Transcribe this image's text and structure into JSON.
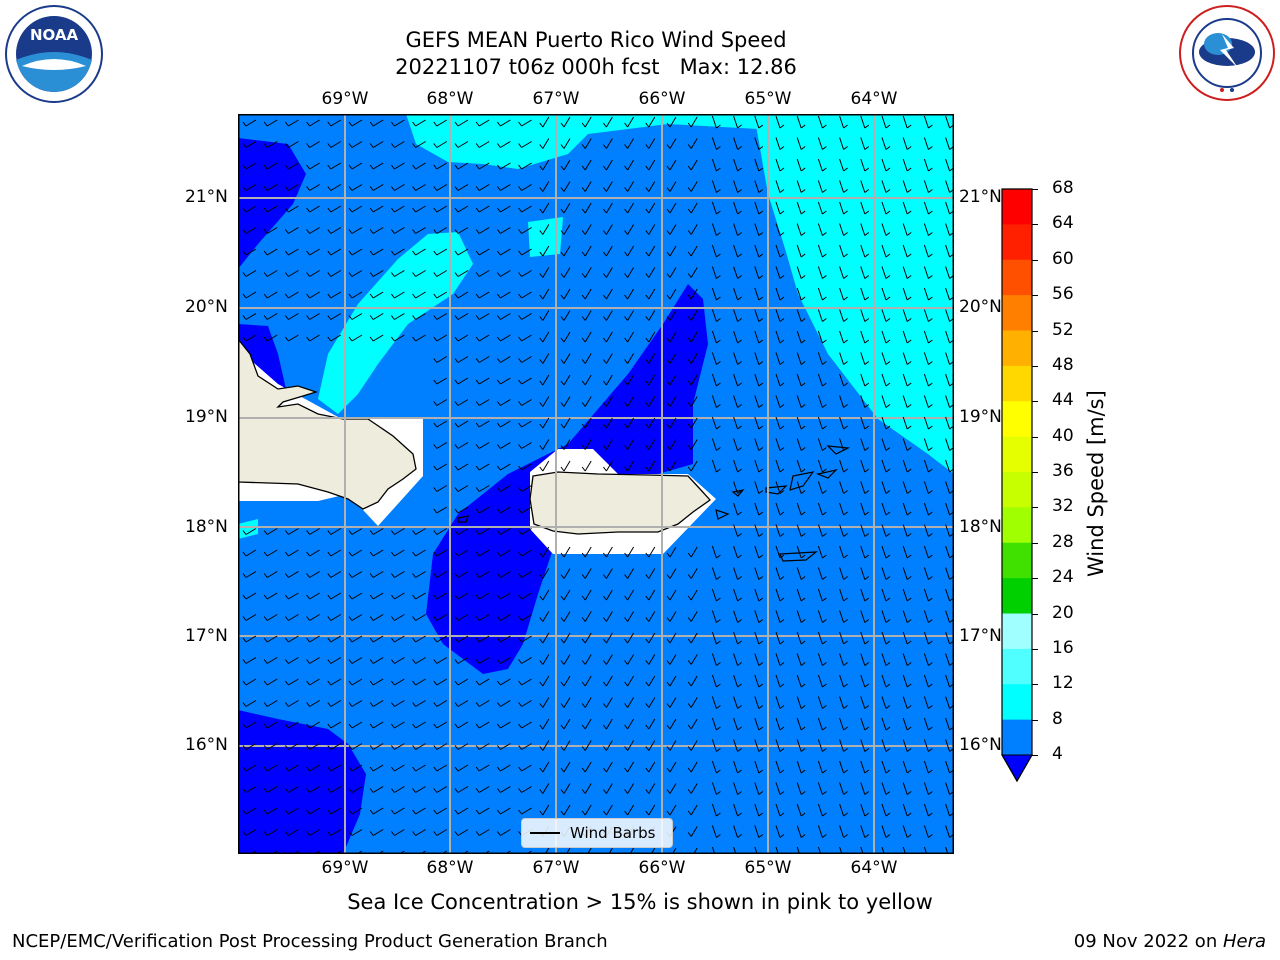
{
  "title": {
    "line1": "GEFS MEAN Puerto Rico Wind Speed",
    "line2": "20221107 t06z 000h fcst   Max: 12.86"
  },
  "axes": {
    "lon_labels": [
      "69°W",
      "68°W",
      "67°W",
      "66°W",
      "65°W",
      "64°W"
    ],
    "lat_labels": [
      "21°N",
      "20°N",
      "19°N",
      "18°N",
      "17°N",
      "16°N"
    ]
  },
  "legend": {
    "label": "Wind Barbs"
  },
  "colorbar": {
    "label": "Wind Speed [m/s]",
    "ticks": [
      "68",
      "64",
      "60",
      "56",
      "52",
      "48",
      "44",
      "40",
      "36",
      "32",
      "28",
      "24",
      "20",
      "16",
      "12",
      "8",
      "4"
    ],
    "colors": [
      "#ff0000",
      "#ff2000",
      "#ff5000",
      "#ff8000",
      "#ffb000",
      "#ffd800",
      "#ffff00",
      "#e6ff00",
      "#c8ff00",
      "#a0ff00",
      "#40e000",
      "#00d000",
      "#00ff40",
      "#50f078",
      "#a0ffff",
      "#50ffff",
      "#00ffff",
      "#0080ff"
    ],
    "extend_color": "#0000ff"
  },
  "caption": "Sea Ice Concentration > 15% is shown in pink to yellow",
  "footer": {
    "left": "NCEP/EMC/Verification Post Processing Product Generation Branch",
    "right_prefix": "09 Nov 2022 on ",
    "right_host": "Hera"
  },
  "logos": {
    "left": {
      "text": "NOAA",
      "ring": "NATIONAL OCEANIC AND ATMOSPHERIC ADMINISTRATION · U.S. DEPARTMENT OF COMMERCE"
    },
    "right": {
      "ring": "NATIONAL WEATHER SERVICE"
    }
  },
  "colors": {
    "dark_blue": "#0000ff",
    "mid_blue": "#0080ff",
    "cyan": "#00ffff",
    "land": "#eeecdc"
  }
}
